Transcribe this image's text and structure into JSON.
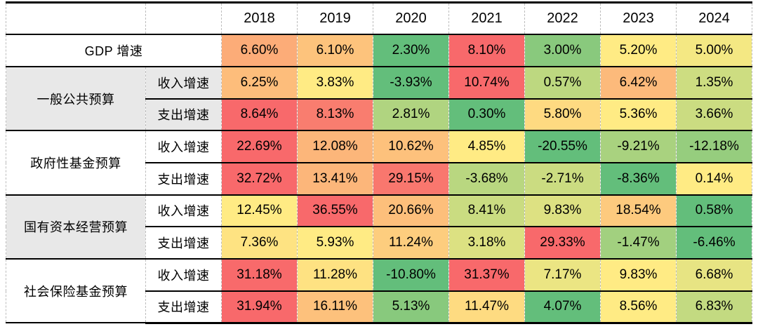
{
  "chart_data": {
    "type": "heatmap",
    "columns": [
      "2018",
      "2019",
      "2020",
      "2021",
      "2022",
      "2023",
      "2024"
    ],
    "corner_label": "",
    "sub_header_labels": {
      "income": "收入增速",
      "expense": "支出增速"
    },
    "rows": [
      {
        "group": "GDP 增速",
        "sub": "",
        "merged_label": true,
        "group_rowspan": 1,
        "label_bg": "#ffffff",
        "group_bg": "#ffffff",
        "values": [
          6.6,
          6.1,
          2.3,
          8.1,
          3.0,
          5.2,
          5.0
        ],
        "display": [
          "6.60%",
          "6.10%",
          "2.30%",
          "8.10%",
          "3.00%",
          "5.20%",
          "5.00%"
        ],
        "colors": [
          "#FCAC78",
          "#FDC37C",
          "#63BE7B",
          "#F8696B",
          "#89C97D",
          "#FFEB84",
          "#F4E883"
        ]
      },
      {
        "group": "一般公共预算",
        "sub": "收入增速",
        "merged_label": false,
        "group_rowspan": 2,
        "label_bg": "#E8E8E8",
        "group_bg": "#E8E8E8",
        "values": [
          6.25,
          3.83,
          -3.93,
          10.74,
          0.57,
          6.42,
          1.35
        ],
        "display": [
          "6.25%",
          "3.83%",
          "-3.93%",
          "10.74%",
          "0.57%",
          "6.42%",
          "1.35%"
        ],
        "colors": [
          "#FDBD7B",
          "#FFEB84",
          "#63BE7B",
          "#F8696B",
          "#BDD880",
          "#FCBA7B",
          "#CDDD81"
        ]
      },
      {
        "group": null,
        "sub": "支出增速",
        "merged_label": false,
        "group_rowspan": 0,
        "label_bg": "#E8E8E8",
        "values": [
          8.64,
          8.13,
          2.81,
          0.3,
          5.8,
          5.36,
          3.66
        ],
        "display": [
          "8.64%",
          "8.13%",
          "2.81%",
          "0.30%",
          "5.80%",
          "5.36%",
          "3.66%"
        ],
        "colors": [
          "#F8696B",
          "#F97D6F",
          "#B0D480",
          "#63BE7B",
          "#FEDA81",
          "#FFEB84",
          "#CBDC81"
        ]
      },
      {
        "group": "政府性基金预算",
        "sub": "收入增速",
        "merged_label": false,
        "group_rowspan": 2,
        "label_bg": "#ffffff",
        "group_bg": "#ffffff",
        "values": [
          22.69,
          12.08,
          10.62,
          4.85,
          -20.55,
          -9.21,
          -12.18
        ],
        "display": [
          "22.69%",
          "12.08%",
          "10.62%",
          "4.85%",
          "-20.55%",
          "-9.21%",
          "-12.18%"
        ],
        "colors": [
          "#F8696B",
          "#FCB67A",
          "#FDC17C",
          "#FFEB84",
          "#63BE7B",
          "#A9D27F",
          "#96CD7E"
        ]
      },
      {
        "group": null,
        "sub": "支出增速",
        "merged_label": false,
        "group_rowspan": 0,
        "label_bg": "#ffffff",
        "values": [
          32.72,
          13.41,
          29.15,
          -3.68,
          -2.71,
          -8.36,
          0.14
        ],
        "display": [
          "32.72%",
          "13.41%",
          "29.15%",
          "-3.68%",
          "-2.71%",
          "-8.36%",
          "0.14%"
        ],
        "colors": [
          "#F8696B",
          "#FCB67A",
          "#F9776E",
          "#B9D780",
          "#CBDC81",
          "#63BE7B",
          "#FFEB84"
        ]
      },
      {
        "group": "国有资本经营预算",
        "sub": "收入增速",
        "merged_label": false,
        "group_rowspan": 2,
        "label_bg": "#ffffff",
        "group_bg": "#E8E8E8",
        "values": [
          12.45,
          36.55,
          20.66,
          8.41,
          9.83,
          18.54,
          0.58
        ],
        "display": [
          "12.45%",
          "36.55%",
          "20.66%",
          "8.41%",
          "9.83%",
          "18.54%",
          "0.58%"
        ],
        "colors": [
          "#FFEB84",
          "#F8696B",
          "#FDBF7B",
          "#CADC81",
          "#DDE182",
          "#FDCA7E",
          "#63BE7B"
        ]
      },
      {
        "group": null,
        "sub": "支出增速",
        "merged_label": false,
        "group_rowspan": 0,
        "label_bg": "#ffffff",
        "values": [
          7.36,
          5.93,
          11.24,
          3.18,
          29.33,
          -1.47,
          -6.46
        ],
        "display": [
          "7.36%",
          "5.93%",
          "11.24%",
          "3.18%",
          "29.33%",
          "-1.47%",
          "-6.46%"
        ],
        "colors": [
          "#FEE382",
          "#FFEB84",
          "#FDCD7E",
          "#DCE182",
          "#F8696B",
          "#A2D07F",
          "#63BE7B"
        ]
      },
      {
        "group": "社会保险基金预算",
        "sub": "收入增速",
        "merged_label": false,
        "group_rowspan": 2,
        "label_bg": "#ffffff",
        "group_bg": "#ffffff",
        "values": [
          31.18,
          11.28,
          -10.8,
          31.37,
          7.17,
          9.83,
          6.68
        ],
        "display": [
          "31.18%",
          "11.28%",
          "-10.80%",
          "31.37%",
          "7.17%",
          "9.83%",
          "6.68%"
        ],
        "colors": [
          "#F86A6B",
          "#FEE282",
          "#63BE7B",
          "#F8696B",
          "#EBE583",
          "#FFEB84",
          "#E7E483"
        ]
      },
      {
        "group": null,
        "sub": "支出增速",
        "merged_label": false,
        "group_rowspan": 0,
        "label_bg": "#ffffff",
        "values": [
          31.94,
          16.11,
          5.13,
          11.47,
          4.07,
          8.56,
          6.83
        ],
        "display": [
          "31.94%",
          "16.11%",
          "5.13%",
          "11.47%",
          "4.07%",
          "8.56%",
          "6.83%"
        ],
        "colors": [
          "#F8696B",
          "#FDC17C",
          "#88C97D",
          "#FEDB81",
          "#63BE7B",
          "#FFEB84",
          "#C3DA81"
        ]
      }
    ],
    "colorscale": {
      "rule": "row-wise 3-color scale: minimum, median, maximum",
      "min_color": "#63BE7B",
      "mid_color": "#FFEB84",
      "max_color": "#F8696B"
    },
    "layout": {
      "band_gray": "#E8E8E8",
      "grid_dash_color": "#BDBDBD",
      "line_color": "#000000",
      "group_col_width": 199,
      "sub_col_width": 108,
      "year_col_width": 108
    }
  }
}
